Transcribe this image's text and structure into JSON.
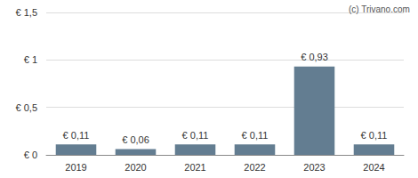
{
  "chart_data": {
    "type": "bar",
    "annotation": "(c) Trivano.com",
    "categories": [
      "2019",
      "2020",
      "2021",
      "2022",
      "2023",
      "2024"
    ],
    "values": [
      0.11,
      0.06,
      0.11,
      0.11,
      0.93,
      0.11
    ],
    "value_labels": [
      "€ 0,11",
      "€ 0,06",
      "€ 0,11",
      "€ 0,11",
      "€ 0,93",
      "€ 0,11"
    ],
    "color": "#637d91",
    "ylim": [
      0,
      1.5
    ],
    "yticks": [
      {
        "value": 0,
        "label": "€ 0"
      },
      {
        "value": 0.5,
        "label": "€ 0,5"
      },
      {
        "value": 1,
        "label": "€ 1"
      },
      {
        "value": 1.5,
        "label": "€ 1,5"
      }
    ],
    "grid": true,
    "data_labels": true
  }
}
